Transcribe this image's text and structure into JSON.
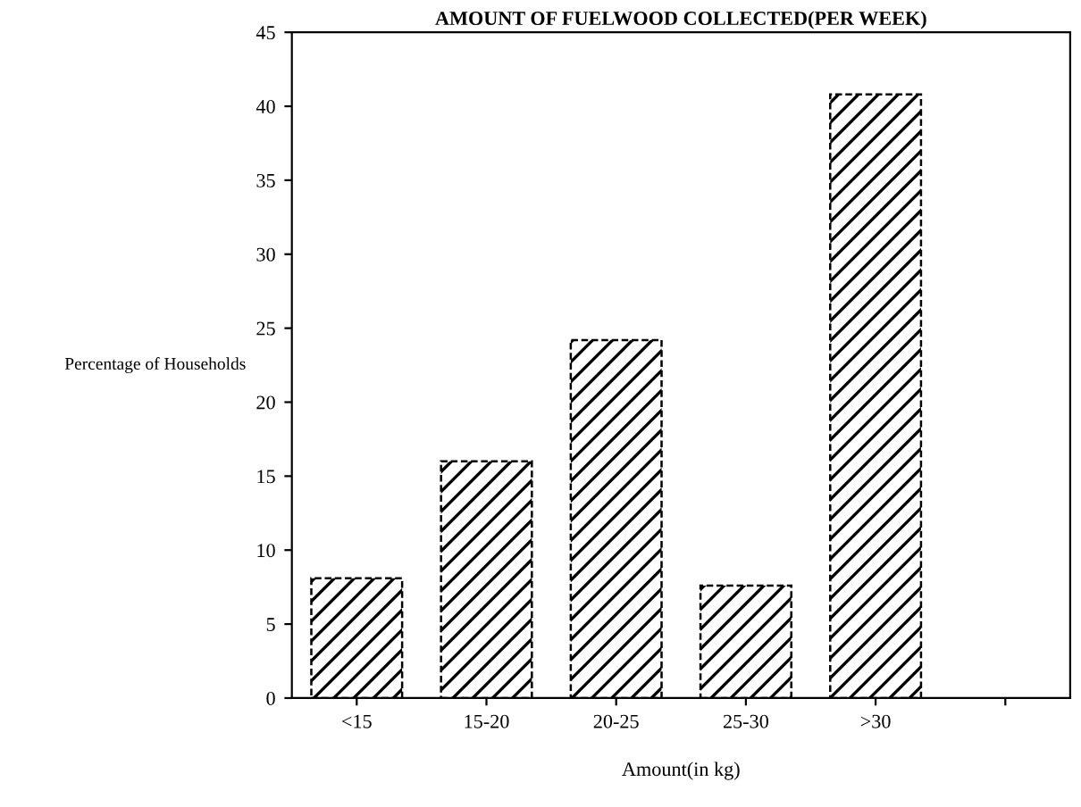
{
  "chart_data": {
    "type": "bar",
    "title": "AMOUNT OF FUELWOOD COLLECTED(PER WEEK)",
    "xlabel": "Amount(in kg)",
    "ylabel": "Percentage of Households",
    "categories": [
      "<15",
      "15-20",
      "20-25",
      "25-30",
      ">30",
      null
    ],
    "values": [
      8.1,
      16.0,
      24.2,
      7.6,
      40.8,
      null
    ],
    "color": "#000000",
    "ylim": [
      0,
      45
    ],
    "yticks": [
      0,
      5,
      10,
      15,
      20,
      25,
      30,
      35,
      40,
      45
    ],
    "grid": false
  }
}
